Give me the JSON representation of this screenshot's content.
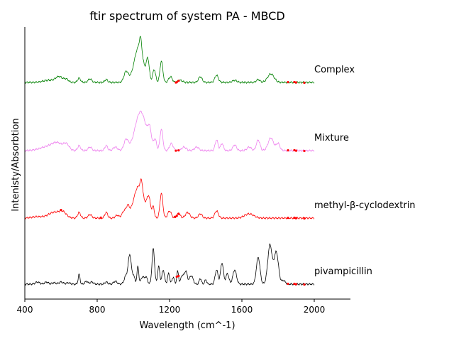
{
  "chart_data": {
    "type": "line",
    "title": "ftir spectrum of system PA - MBCD",
    "xlabel": "Wavelength (cm^-1)",
    "ylabel": "Intenisty/Absorbtion",
    "xlim": [
      400,
      2200
    ],
    "xticks": [
      400,
      800,
      1200,
      1600,
      2000
    ],
    "x_range_plotted": [
      400,
      2000
    ],
    "grid": false,
    "legend": "labels placed at right end of each trace",
    "series": [
      {
        "name": "pivampicillin",
        "color": "#000000",
        "offset": 0,
        "peaks": [
          {
            "x": 470,
            "h": 3,
            "w": 12
          },
          {
            "x": 520,
            "h": 3,
            "w": 10
          },
          {
            "x": 560,
            "h": 2,
            "w": 10
          },
          {
            "x": 600,
            "h": 3,
            "w": 12
          },
          {
            "x": 640,
            "h": 2,
            "w": 10
          },
          {
            "x": 700,
            "h": 14,
            "w": 5
          },
          {
            "x": 740,
            "h": 4,
            "w": 8
          },
          {
            "x": 770,
            "h": 3,
            "w": 10
          },
          {
            "x": 850,
            "h": 3,
            "w": 8
          },
          {
            "x": 900,
            "h": 4,
            "w": 10
          },
          {
            "x": 960,
            "h": 12,
            "w": 10
          },
          {
            "x": 980,
            "h": 40,
            "w": 8
          },
          {
            "x": 1000,
            "h": 12,
            "w": 8
          },
          {
            "x": 1025,
            "h": 25,
            "w": 5
          },
          {
            "x": 1050,
            "h": 10,
            "w": 8
          },
          {
            "x": 1070,
            "h": 10,
            "w": 8
          },
          {
            "x": 1110,
            "h": 50,
            "w": 7
          },
          {
            "x": 1140,
            "h": 25,
            "w": 6
          },
          {
            "x": 1165,
            "h": 20,
            "w": 7
          },
          {
            "x": 1195,
            "h": 15,
            "w": 6
          },
          {
            "x": 1220,
            "h": 10,
            "w": 6
          },
          {
            "x": 1245,
            "h": 18,
            "w": 5
          },
          {
            "x": 1270,
            "h": 12,
            "w": 8
          },
          {
            "x": 1290,
            "h": 18,
            "w": 8
          },
          {
            "x": 1320,
            "h": 12,
            "w": 10
          },
          {
            "x": 1370,
            "h": 8,
            "w": 6
          },
          {
            "x": 1400,
            "h": 6,
            "w": 6
          },
          {
            "x": 1460,
            "h": 20,
            "w": 8
          },
          {
            "x": 1490,
            "h": 30,
            "w": 8
          },
          {
            "x": 1520,
            "h": 15,
            "w": 8
          },
          {
            "x": 1560,
            "h": 20,
            "w": 10
          },
          {
            "x": 1690,
            "h": 38,
            "w": 10
          },
          {
            "x": 1755,
            "h": 55,
            "w": 12
          },
          {
            "x": 1790,
            "h": 45,
            "w": 12
          },
          {
            "x": 1830,
            "h": 5,
            "w": 10
          }
        ],
        "markers": [
          1240,
          1250,
          1855,
          1890,
          1900,
          1945
        ]
      },
      {
        "name": "methyl-β-cyclodextrin",
        "color": "#ff0000",
        "offset": 1,
        "peaks": [
          {
            "x": 470,
            "h": 2,
            "w": 30
          },
          {
            "x": 560,
            "h": 8,
            "w": 30
          },
          {
            "x": 610,
            "h": 8,
            "w": 20
          },
          {
            "x": 700,
            "h": 8,
            "w": 8
          },
          {
            "x": 760,
            "h": 5,
            "w": 10
          },
          {
            "x": 850,
            "h": 8,
            "w": 8
          },
          {
            "x": 910,
            "h": 4,
            "w": 10
          },
          {
            "x": 950,
            "h": 10,
            "w": 12
          },
          {
            "x": 970,
            "h": 12,
            "w": 8
          },
          {
            "x": 1030,
            "h": 45,
            "w": 28
          },
          {
            "x": 1045,
            "h": 15,
            "w": 6
          },
          {
            "x": 1085,
            "h": 25,
            "w": 10
          },
          {
            "x": 1110,
            "h": 15,
            "w": 6
          },
          {
            "x": 1155,
            "h": 35,
            "w": 8
          },
          {
            "x": 1200,
            "h": 10,
            "w": 10
          },
          {
            "x": 1250,
            "h": 6,
            "w": 10
          },
          {
            "x": 1300,
            "h": 8,
            "w": 12
          },
          {
            "x": 1370,
            "h": 6,
            "w": 10
          },
          {
            "x": 1460,
            "h": 10,
            "w": 10
          },
          {
            "x": 1640,
            "h": 6,
            "w": 25
          }
        ],
        "markers": [
          600,
          820,
          1230,
          1240,
          1250,
          1855,
          1890,
          1900,
          1945
        ]
      },
      {
        "name": "Mixture",
        "color": "#ee82ee",
        "offset": 2,
        "peaks": [
          {
            "x": 520,
            "h": 5,
            "w": 40
          },
          {
            "x": 580,
            "h": 10,
            "w": 30
          },
          {
            "x": 630,
            "h": 8,
            "w": 15
          },
          {
            "x": 700,
            "h": 7,
            "w": 8
          },
          {
            "x": 760,
            "h": 5,
            "w": 10
          },
          {
            "x": 850,
            "h": 7,
            "w": 8
          },
          {
            "x": 900,
            "h": 5,
            "w": 12
          },
          {
            "x": 960,
            "h": 15,
            "w": 12
          },
          {
            "x": 1040,
            "h": 55,
            "w": 30
          },
          {
            "x": 1090,
            "h": 22,
            "w": 10
          },
          {
            "x": 1120,
            "h": 15,
            "w": 8
          },
          {
            "x": 1155,
            "h": 30,
            "w": 8
          },
          {
            "x": 1210,
            "h": 10,
            "w": 10
          },
          {
            "x": 1280,
            "h": 5,
            "w": 12
          },
          {
            "x": 1350,
            "h": 5,
            "w": 12
          },
          {
            "x": 1460,
            "h": 15,
            "w": 8
          },
          {
            "x": 1490,
            "h": 10,
            "w": 8
          },
          {
            "x": 1560,
            "h": 8,
            "w": 10
          },
          {
            "x": 1640,
            "h": 5,
            "w": 12
          },
          {
            "x": 1690,
            "h": 15,
            "w": 10
          },
          {
            "x": 1760,
            "h": 18,
            "w": 15
          },
          {
            "x": 1800,
            "h": 10,
            "w": 10
          }
        ],
        "markers": [
          1235,
          1250,
          1855,
          1890,
          1900,
          1945
        ]
      },
      {
        "name": "Complex",
        "color": "#008000",
        "offset": 3,
        "peaks": [
          {
            "x": 530,
            "h": 3,
            "w": 30
          },
          {
            "x": 590,
            "h": 8,
            "w": 20
          },
          {
            "x": 630,
            "h": 4,
            "w": 12
          },
          {
            "x": 700,
            "h": 6,
            "w": 8
          },
          {
            "x": 760,
            "h": 5,
            "w": 10
          },
          {
            "x": 850,
            "h": 4,
            "w": 8
          },
          {
            "x": 960,
            "h": 15,
            "w": 12
          },
          {
            "x": 1030,
            "h": 50,
            "w": 25
          },
          {
            "x": 1040,
            "h": 18,
            "w": 6
          },
          {
            "x": 1080,
            "h": 28,
            "w": 8
          },
          {
            "x": 1115,
            "h": 18,
            "w": 8
          },
          {
            "x": 1155,
            "h": 30,
            "w": 8
          },
          {
            "x": 1205,
            "h": 8,
            "w": 10
          },
          {
            "x": 1260,
            "h": 3,
            "w": 12
          },
          {
            "x": 1370,
            "h": 8,
            "w": 10
          },
          {
            "x": 1460,
            "h": 10,
            "w": 10
          },
          {
            "x": 1560,
            "h": 3,
            "w": 12
          },
          {
            "x": 1690,
            "h": 4,
            "w": 10
          },
          {
            "x": 1760,
            "h": 12,
            "w": 18
          }
        ],
        "markers": [
          1235,
          1240,
          1250,
          1855,
          1890,
          1900,
          1945
        ]
      }
    ]
  }
}
